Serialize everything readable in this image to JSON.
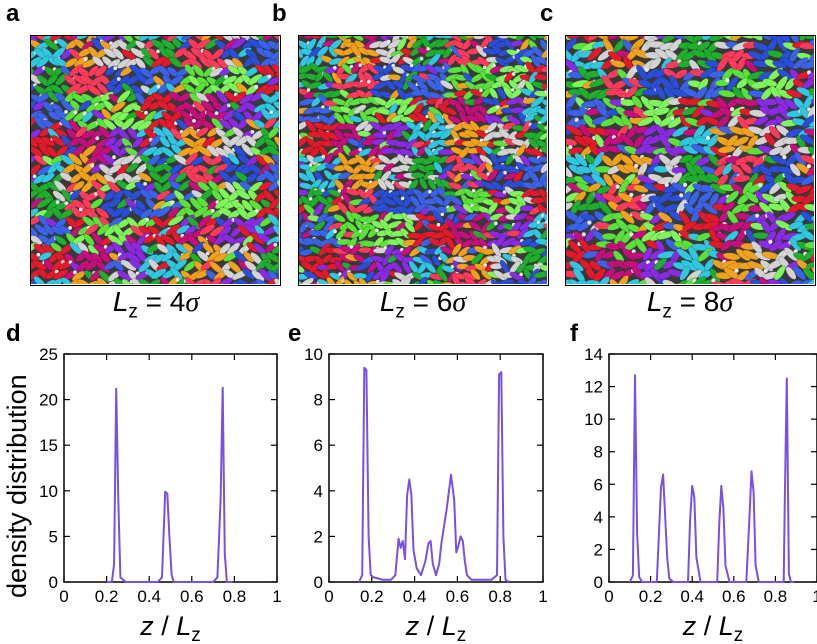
{
  "panels": {
    "top_letters": [
      "a",
      "b",
      "c"
    ],
    "bottom_letters": [
      "d",
      "e",
      "f"
    ],
    "captions": [
      {
        "L": "L",
        "sub": "z",
        "eq": " = 4",
        "sym": "σ"
      },
      {
        "L": "L",
        "sub": "z",
        "eq": " = 6",
        "sym": "σ"
      },
      {
        "L": "L",
        "sub": "z",
        "eq": " = 8",
        "sym": "σ"
      }
    ]
  },
  "snapshot_palette": [
    "#2a4fd6",
    "#3b63e8",
    "#5be03c",
    "#7ef55a",
    "#e11b2b",
    "#c4107a",
    "#8a2be2",
    "#31c7e0",
    "#f0a21e",
    "#d3d3d3",
    "#1fae2e",
    "#ff3b5c"
  ],
  "ylabel": "density distribution",
  "line_color": "#7b4fe6",
  "chart_data": [
    {
      "type": "line",
      "panel": "d",
      "xlabel": "z / Lz",
      "xlabel_parts": {
        "z": "z",
        "slash": " / ",
        "L": "L",
        "sub": "z"
      },
      "ylabel": "density distribution",
      "xlim": [
        0,
        1
      ],
      "ylim": [
        0,
        25
      ],
      "xticks": [
        "0",
        "0.2",
        "0.4",
        "0.6",
        "0.8",
        "1"
      ],
      "yticks": [
        "0",
        "5",
        "10",
        "15",
        "20",
        "25"
      ],
      "x": [
        0.2,
        0.225,
        0.235,
        0.245,
        0.255,
        0.265,
        0.29,
        0.44,
        0.46,
        0.475,
        0.485,
        0.495,
        0.505,
        0.515,
        0.54,
        0.7,
        0.72,
        0.735,
        0.745,
        0.755,
        0.765,
        0.79
      ],
      "y": [
        0,
        0,
        2,
        21.2,
        9,
        0.5,
        0,
        0,
        0.5,
        9.9,
        9.7,
        5,
        0.8,
        0,
        0,
        0,
        0.5,
        9,
        21.3,
        3,
        0,
        0
      ]
    },
    {
      "type": "line",
      "panel": "e",
      "xlabel": "z / Lz",
      "xlabel_parts": {
        "z": "z",
        "slash": " / ",
        "L": "L",
        "sub": "z"
      },
      "xlim": [
        0,
        1
      ],
      "ylim": [
        0,
        10
      ],
      "xticks": [
        "0",
        "0.2",
        "0.4",
        "0.6",
        "0.8",
        "1"
      ],
      "yticks": [
        "0",
        "2",
        "4",
        "6",
        "8",
        "10"
      ],
      "x": [
        0.14,
        0.155,
        0.165,
        0.175,
        0.185,
        0.195,
        0.21,
        0.25,
        0.29,
        0.31,
        0.325,
        0.335,
        0.345,
        0.355,
        0.365,
        0.375,
        0.385,
        0.395,
        0.41,
        0.43,
        0.45,
        0.465,
        0.475,
        0.485,
        0.5,
        0.515,
        0.525,
        0.535,
        0.55,
        0.57,
        0.585,
        0.595,
        0.605,
        0.615,
        0.625,
        0.635,
        0.645,
        0.655,
        0.665,
        0.68,
        0.7,
        0.76,
        0.785,
        0.795,
        0.805,
        0.815,
        0.825,
        0.84
      ],
      "y": [
        0,
        0.3,
        9.4,
        9.3,
        2,
        0.3,
        0.2,
        0.1,
        0.1,
        0.3,
        1.9,
        1.5,
        1.8,
        1.0,
        3.8,
        4.5,
        3.8,
        1.4,
        0.6,
        0.3,
        0.9,
        1.7,
        1.8,
        0.8,
        0.3,
        0.8,
        1.7,
        2.3,
        3.2,
        4.7,
        3.6,
        1.3,
        1.6,
        2.0,
        1.8,
        0.9,
        0.3,
        0.2,
        0.1,
        0.1,
        0.1,
        0.1,
        0.3,
        9.1,
        9.2,
        2,
        0.1,
        0
      ]
    },
    {
      "type": "line",
      "panel": "f",
      "xlabel": "z / Lz",
      "xlabel_parts": {
        "z": "z",
        "slash": " / ",
        "L": "L",
        "sub": "z"
      },
      "xlim": [
        0,
        1
      ],
      "ylim": [
        0,
        14
      ],
      "xticks": [
        "0",
        "0.2",
        "0.4",
        "0.6",
        "0.8",
        "1"
      ],
      "yticks": [
        "0",
        "2",
        "4",
        "6",
        "8",
        "10",
        "12",
        "14"
      ],
      "x": [
        0.1,
        0.115,
        0.125,
        0.135,
        0.145,
        0.16,
        0.23,
        0.25,
        0.26,
        0.27,
        0.28,
        0.29,
        0.31,
        0.38,
        0.39,
        0.4,
        0.41,
        0.42,
        0.44,
        0.52,
        0.53,
        0.54,
        0.55,
        0.56,
        0.58,
        0.66,
        0.675,
        0.685,
        0.695,
        0.705,
        0.72,
        0.84,
        0.845,
        0.855,
        0.865,
        0.875,
        0.89
      ],
      "y": [
        0,
        0.4,
        12.7,
        3,
        0.3,
        0,
        0,
        5.8,
        6.6,
        4,
        1.5,
        0.2,
        0,
        0,
        3.8,
        5.9,
        5.2,
        1.5,
        0,
        0,
        3.5,
        5.9,
        4.5,
        1.0,
        0,
        0,
        3.9,
        6.8,
        5.5,
        1.0,
        0,
        0,
        5,
        12.5,
        0.5,
        0,
        0
      ]
    }
  ]
}
